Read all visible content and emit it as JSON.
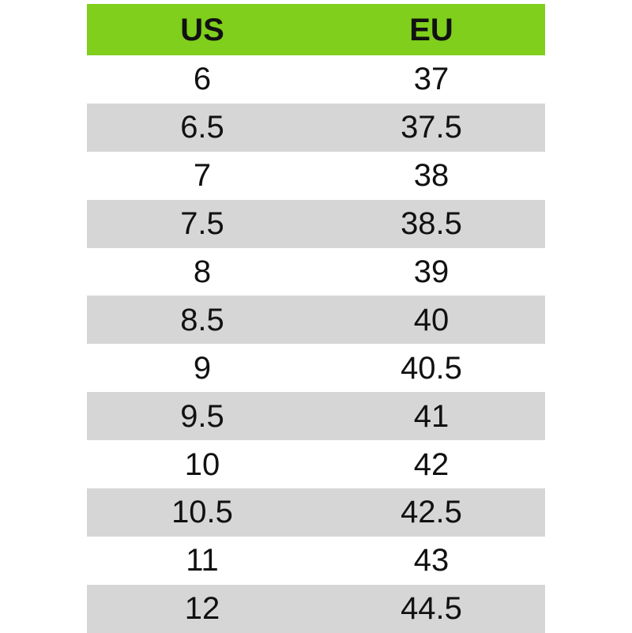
{
  "table": {
    "header": [
      "US",
      "EU"
    ],
    "rows": [
      [
        "6",
        "37"
      ],
      [
        "6.5",
        "37.5"
      ],
      [
        "7",
        "38"
      ],
      [
        "7.5",
        "38.5"
      ],
      [
        "8",
        "39"
      ],
      [
        "8.5",
        "40"
      ],
      [
        "9",
        "40.5"
      ],
      [
        "9.5",
        "41"
      ],
      [
        "10",
        "42"
      ],
      [
        "10.5",
        "42.5"
      ],
      [
        "11",
        "43"
      ],
      [
        "12",
        "44.5"
      ]
    ]
  }
}
